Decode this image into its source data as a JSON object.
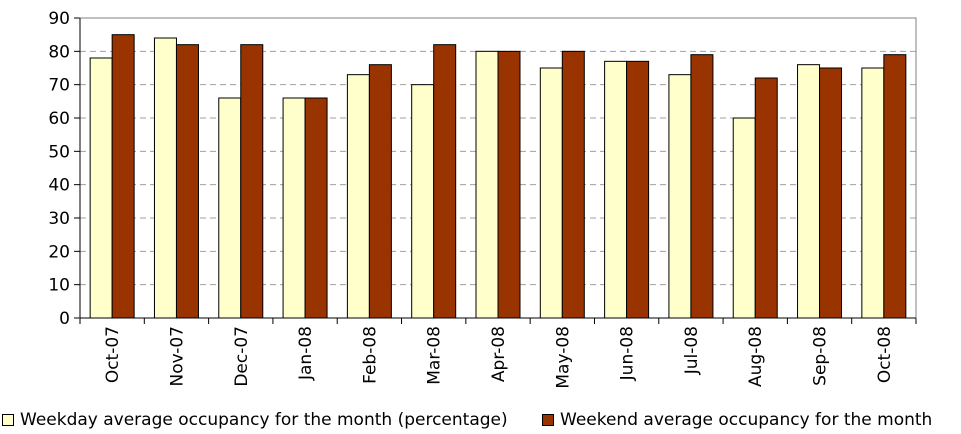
{
  "chart_data": {
    "type": "bar",
    "categories": [
      "Oct-07",
      "Nov-07",
      "Dec-07",
      "Jan-08",
      "Feb-08",
      "Mar-08",
      "Apr-08",
      "May-08",
      "Jun-08",
      "Jul-08",
      "Aug-08",
      "Sep-08",
      "Oct-08"
    ],
    "series": [
      {
        "name": "Weekday average occupancy for the month (percentage)",
        "values": [
          78,
          84,
          66,
          66,
          73,
          70,
          80,
          75,
          77,
          73,
          60,
          76,
          75
        ],
        "color": "#ffffcc"
      },
      {
        "name": "Weekend average occupancy for the month",
        "values": [
          85,
          82,
          82,
          66,
          76,
          82,
          80,
          80,
          77,
          79,
          72,
          75,
          79
        ],
        "color": "#993300"
      }
    ],
    "ylim": [
      0,
      90
    ],
    "yticks": [
      0,
      10,
      20,
      30,
      40,
      50,
      60,
      70,
      80,
      90
    ],
    "grid": "horizontal dashed",
    "legend_position": "bottom"
  }
}
